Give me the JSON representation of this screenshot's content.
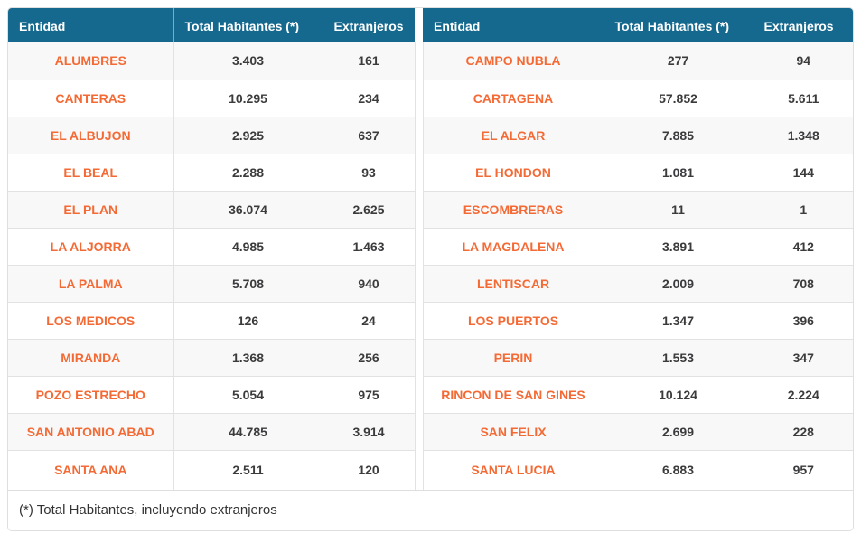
{
  "columns": [
    "Entidad",
    "Total Habitantes (*)",
    "Extranjeros"
  ],
  "footnote": "(*) Total Habitantes, incluyendo extranjeros",
  "colors": {
    "header_bg": "#16698e",
    "header_text": "#ffffff",
    "entity_text": "#f46a35",
    "value_text": "#3b3b3d",
    "stripe_bg": "#f8f8f8",
    "border": "#dfdfdf"
  },
  "table_left": {
    "rows": [
      {
        "entity": "ALUMBRES",
        "total": "3.403",
        "extranjeros": "161"
      },
      {
        "entity": "CANTERAS",
        "total": "10.295",
        "extranjeros": "234"
      },
      {
        "entity": "EL ALBUJON",
        "total": "2.925",
        "extranjeros": "637"
      },
      {
        "entity": "EL BEAL",
        "total": "2.288",
        "extranjeros": "93"
      },
      {
        "entity": "EL PLAN",
        "total": "36.074",
        "extranjeros": "2.625"
      },
      {
        "entity": "LA ALJORRA",
        "total": "4.985",
        "extranjeros": "1.463"
      },
      {
        "entity": "LA PALMA",
        "total": "5.708",
        "extranjeros": "940"
      },
      {
        "entity": "LOS MEDICOS",
        "total": "126",
        "extranjeros": "24"
      },
      {
        "entity": "MIRANDA",
        "total": "1.368",
        "extranjeros": "256"
      },
      {
        "entity": "POZO ESTRECHO",
        "total": "5.054",
        "extranjeros": "975"
      },
      {
        "entity": "SAN ANTONIO ABAD",
        "total": "44.785",
        "extranjeros": "3.914"
      },
      {
        "entity": "SANTA ANA",
        "total": "2.511",
        "extranjeros": "120"
      }
    ]
  },
  "table_right": {
    "rows": [
      {
        "entity": "CAMPO NUBLA",
        "total": "277",
        "extranjeros": "94"
      },
      {
        "entity": "CARTAGENA",
        "total": "57.852",
        "extranjeros": "5.611"
      },
      {
        "entity": "EL ALGAR",
        "total": "7.885",
        "extranjeros": "1.348"
      },
      {
        "entity": "EL HONDON",
        "total": "1.081",
        "extranjeros": "144"
      },
      {
        "entity": "ESCOMBRERAS",
        "total": "11",
        "extranjeros": "1"
      },
      {
        "entity": "LA MAGDALENA",
        "total": "3.891",
        "extranjeros": "412"
      },
      {
        "entity": "LENTISCAR",
        "total": "2.009",
        "extranjeros": "708"
      },
      {
        "entity": "LOS PUERTOS",
        "total": "1.347",
        "extranjeros": "396"
      },
      {
        "entity": "PERIN",
        "total": "1.553",
        "extranjeros": "347"
      },
      {
        "entity": "RINCON DE SAN GINES",
        "total": "10.124",
        "extranjeros": "2.224"
      },
      {
        "entity": "SAN FELIX",
        "total": "2.699",
        "extranjeros": "228"
      },
      {
        "entity": "SANTA LUCIA",
        "total": "6.883",
        "extranjeros": "957"
      }
    ]
  }
}
